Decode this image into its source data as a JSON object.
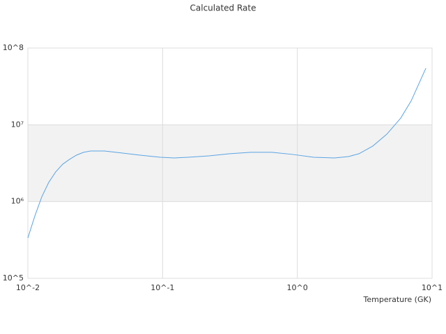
{
  "chart_data": {
    "type": "line",
    "title": "Calculated Rate",
    "x_label": "Temperature (GK)",
    "xscale": "log",
    "yscale": "log",
    "xlim": [
      0.01,
      10
    ],
    "ylim": [
      100000,
      100000000
    ],
    "xticks": [
      {
        "value": 0.01,
        "label": "10^-2"
      },
      {
        "value": 0.1,
        "label": "10^-1"
      },
      {
        "value": 1,
        "label": "10^0"
      },
      {
        "value": 10,
        "label": "10^1"
      }
    ],
    "yticks": [
      {
        "value": 100000,
        "label": "10^5"
      },
      {
        "value": 1000000,
        "label": "10⁶"
      },
      {
        "value": 10000000,
        "label": "10⁷"
      },
      {
        "value": 100000000,
        "label": "10^8"
      }
    ],
    "band_color": "#f2f2f2",
    "series": [
      {
        "color": "#5aa4e3",
        "x": [
          0.01,
          0.01127,
          0.01268,
          0.01429,
          0.0161,
          0.01815,
          0.0204,
          0.023,
          0.0259,
          0.0292,
          0.0371,
          0.0499,
          0.0672,
          0.0962,
          0.122,
          0.155,
          0.221,
          0.316,
          0.452,
          0.647,
          0.925,
          1.32,
          1.89,
          2.4,
          2.87,
          3.63,
          4.61,
          5.85,
          7.0,
          9.0
        ],
        "values": [
          336000,
          650000,
          1150000,
          1780000,
          2440000,
          3070000,
          3550000,
          4030000,
          4380000,
          4560000,
          4560000,
          4290000,
          4030000,
          3780000,
          3700000,
          3780000,
          3940000,
          4200000,
          4380000,
          4380000,
          4110000,
          3780000,
          3700000,
          3860000,
          4200000,
          5280000,
          7530000,
          12200000,
          20500000,
          54700000
        ]
      }
    ]
  }
}
